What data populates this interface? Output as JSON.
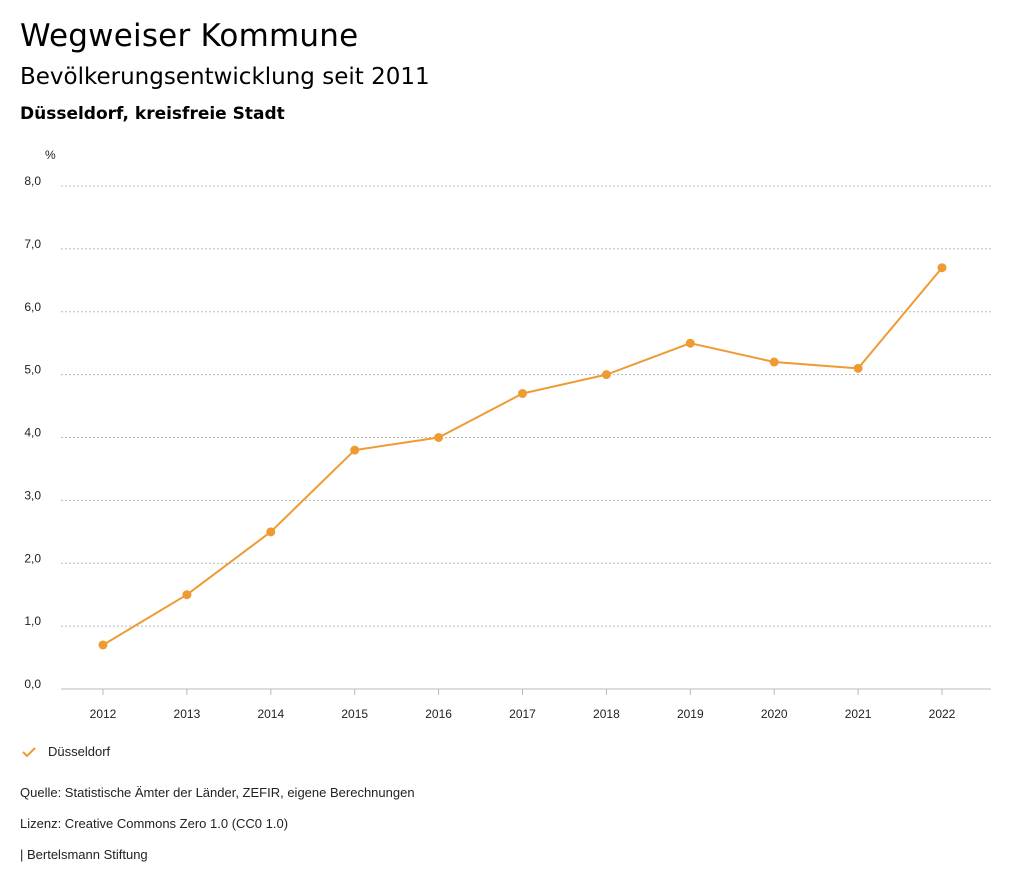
{
  "header": {
    "title": "Wegweiser Kommune",
    "subtitle": "Bevölkerungsentwicklung seit 2011",
    "region": "Düsseldorf, kreisfreie Stadt"
  },
  "colors": {
    "series": "#ef9b33",
    "grid": "#b8b8b8"
  },
  "chart_data": {
    "type": "line",
    "title": "Bevölkerungsentwicklung seit 2011",
    "ylabel": "%",
    "xlabel": "",
    "ylim": [
      0,
      8
    ],
    "yticks": [
      "0,0",
      "1,0",
      "2,0",
      "3,0",
      "4,0",
      "5,0",
      "6,0",
      "7,0",
      "8,0"
    ],
    "categories": [
      "2012",
      "2013",
      "2014",
      "2015",
      "2016",
      "2017",
      "2018",
      "2019",
      "2020",
      "2021",
      "2022"
    ],
    "series": [
      {
        "name": "Düsseldorf",
        "values": [
          0.7,
          1.5,
          2.5,
          3.8,
          4.0,
          4.7,
          5.0,
          5.5,
          5.2,
          5.1,
          6.7
        ]
      }
    ],
    "grid": true,
    "legend": "bottom-left"
  },
  "legend": {
    "label": "Düsseldorf"
  },
  "footer": {
    "source": "Quelle: Statistische Ämter der Länder, ZEFIR, eigene Berechnungen",
    "license": "Lizenz: Creative Commons Zero 1.0 (CC0 1.0)",
    "brand": "| Bertelsmann Stiftung"
  }
}
